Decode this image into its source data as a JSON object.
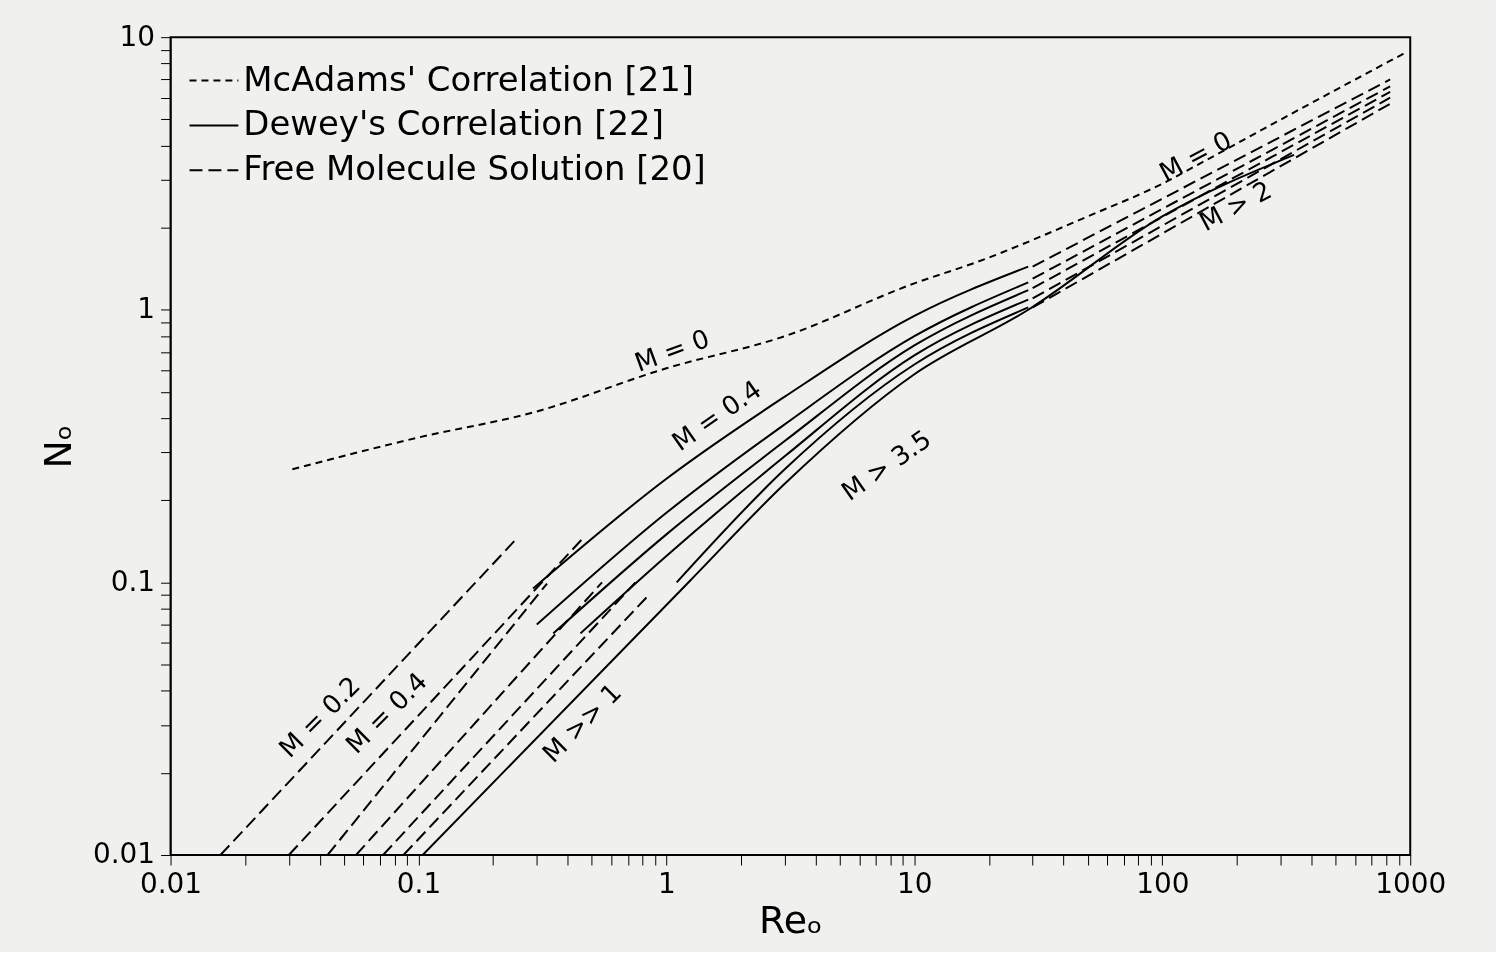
{
  "chart_data": {
    "type": "line",
    "xlabel": "Reₒ",
    "ylabel": "Nₒ",
    "log": "xy",
    "grid": false,
    "legend": "top left",
    "xlim": [
      0.01,
      1000
    ],
    "ylim": [
      0.01,
      10
    ],
    "xticks": [
      0.01,
      {
        "value": 0.02,
        "label": null
      },
      {
        "value": 0.03,
        "label": null
      },
      {
        "value": 0.04,
        "label": null
      },
      {
        "value": 0.05,
        "label": null
      },
      {
        "value": 0.06,
        "label": null
      },
      {
        "value": 0.07,
        "label": null
      },
      {
        "value": 0.08,
        "label": null
      },
      {
        "value": 0.09,
        "label": null
      },
      0.1,
      {
        "value": 0.2,
        "label": null
      },
      {
        "value": 0.3,
        "label": null
      },
      {
        "value": 0.4,
        "label": null
      },
      {
        "value": 0.5,
        "label": null
      },
      {
        "value": 0.6,
        "label": null
      },
      {
        "value": 0.7,
        "label": null
      },
      {
        "value": 0.8,
        "label": null
      },
      {
        "value": 0.9,
        "label": null
      },
      1,
      {
        "value": 2,
        "label": null
      },
      {
        "value": 3,
        "label": null
      },
      {
        "value": 4,
        "label": null
      },
      {
        "value": 5,
        "label": null
      },
      {
        "value": 6,
        "label": null
      },
      {
        "value": 7,
        "label": null
      },
      {
        "value": 8,
        "label": null
      },
      {
        "value": 9,
        "label": null
      },
      10,
      {
        "value": 20,
        "label": null
      },
      {
        "value": 30,
        "label": null
      },
      {
        "value": 40,
        "label": null
      },
      {
        "value": 50,
        "label": null
      },
      {
        "value": 60,
        "label": null
      },
      {
        "value": 70,
        "label": null
      },
      {
        "value": 80,
        "label": null
      },
      {
        "value": 90,
        "label": null
      },
      100,
      {
        "value": 200,
        "label": null
      },
      {
        "value": 300,
        "label": null
      },
      {
        "value": 400,
        "label": null
      },
      {
        "value": 500,
        "label": null
      },
      {
        "value": 600,
        "label": null
      },
      {
        "value": 700,
        "label": null
      },
      {
        "value": 800,
        "label": null
      },
      {
        "value": 900,
        "label": null
      },
      1000
    ],
    "yticks": [
      0.01,
      {
        "value": 0.02,
        "label": null
      },
      {
        "value": 0.03,
        "label": null
      },
      {
        "value": 0.04,
        "label": null
      },
      {
        "value": 0.05,
        "label": null
      },
      {
        "value": 0.06,
        "label": null
      },
      {
        "value": 0.07,
        "label": null
      },
      {
        "value": 0.08,
        "label": null
      },
      {
        "value": 0.09,
        "label": null
      },
      0.1,
      {
        "value": 0.2,
        "label": null
      },
      {
        "value": 0.3,
        "label": null
      },
      {
        "value": 0.4,
        "label": null
      },
      {
        "value": 0.5,
        "label": null
      },
      {
        "value": 0.6,
        "label": null
      },
      {
        "value": 0.7,
        "label": null
      },
      {
        "value": 0.8,
        "label": null
      },
      {
        "value": 0.9,
        "label": null
      },
      1,
      {
        "value": 2,
        "label": null
      },
      {
        "value": 3,
        "label": null
      },
      {
        "value": 4,
        "label": null
      },
      {
        "value": 5,
        "label": null
      },
      {
        "value": 6,
        "label": null
      },
      {
        "value": 7,
        "label": null
      },
      {
        "value": 8,
        "label": null
      },
      {
        "value": 9,
        "label": null
      },
      10
    ],
    "series": [
      {
        "name": "McAdams' Correlation [21]",
        "color": "#000000",
        "line_style": "dotted",
        "x": [
          0.031,
          0.1,
          0.29,
          1,
          3,
          10,
          18,
          50,
          100,
          147,
          340,
          940
        ],
        "values": [
          0.26,
          0.34,
          0.42,
          0.61,
          0.8,
          1.25,
          1.5,
          2.2,
          2.9,
          3.5,
          5.3,
          8.7
        ]
      },
      {
        "name": "Dewey's Correlation [22]",
        "color": "#000000",
        "line_style": "solid",
        "x": [
          0.29,
          1,
          3,
          10,
          28.8
        ],
        "values": [
          0.095,
          0.24,
          0.48,
          0.95,
          1.44
        ]
      },
      {
        "color": "#000000",
        "line_style": "solid",
        "x": [
          0.3,
          1,
          3,
          10,
          28.8
        ],
        "values": [
          0.07,
          0.18,
          0.38,
          0.8,
          1.26
        ]
      },
      {
        "color": "#000000",
        "line_style": "solid",
        "x": [
          0.35,
          1,
          3,
          10,
          28.8
        ],
        "values": [
          0.065,
          0.15,
          0.33,
          0.74,
          1.18
        ]
      },
      {
        "color": "#000000",
        "line_style": "solid",
        "x": [
          0.45,
          1,
          3,
          10,
          28.8
        ],
        "values": [
          0.065,
          0.125,
          0.29,
          0.68,
          1.09
        ]
      },
      {
        "color": "#000000",
        "line_style": "solid",
        "x": [
          1.1,
          3,
          10,
          28.8
        ],
        "values": [
          0.1,
          0.26,
          0.63,
          1.02
        ]
      },
      {
        "color": "#000000",
        "line_style": "solid",
        "x": [
          0.104,
          1.24,
          3,
          10,
          28.8,
          100,
          340
        ],
        "values": [
          0.01,
          0.101,
          0.23,
          0.58,
          1.0,
          2.2,
          3.7
        ]
      },
      {
        "name": "Free Molecule Solution [20]",
        "color": "#000000",
        "line_style": "dashed",
        "x": [
          0.0159,
          0.244
        ],
        "values": [
          0.01,
          0.142
        ]
      },
      {
        "color": "#000000",
        "line_style": "dashed",
        "x": [
          0.03,
          0.46
        ],
        "values": [
          0.01,
          0.145
        ]
      },
      {
        "color": "#000000",
        "line_style": "dashed",
        "x": [
          0.043,
          0.33
        ],
        "values": [
          0.01,
          0.099
        ]
      },
      {
        "color": "#000000",
        "line_style": "dashed",
        "x": [
          0.056,
          0.55
        ],
        "values": [
          0.01,
          0.1
        ]
      },
      {
        "color": "#000000",
        "line_style": "dashed",
        "x": [
          0.072,
          0.75
        ],
        "values": [
          0.01,
          0.1
        ]
      },
      {
        "color": "#000000",
        "line_style": "dashed",
        "x": [
          0.087,
          0.85
        ],
        "values": [
          0.01,
          0.09
        ]
      },
      {
        "color": "#000000",
        "line_style": "dashed",
        "x": [
          30,
          830
        ],
        "values": [
          1.44,
          7.0
        ]
      },
      {
        "color": "#000000",
        "line_style": "dashed",
        "x": [
          30,
          830
        ],
        "values": [
          1.3,
          6.6
        ]
      },
      {
        "color": "#000000",
        "line_style": "dashed",
        "x": [
          30,
          830
        ],
        "values": [
          1.2,
          6.3
        ]
      },
      {
        "color": "#000000",
        "line_style": "dashed",
        "x": [
          30,
          830
        ],
        "values": [
          1.1,
          6.0
        ]
      },
      {
        "color": "#000000",
        "line_style": "dashed",
        "x": [
          30,
          830
        ],
        "values": [
          1.02,
          5.7
        ]
      }
    ],
    "annotations": [
      "M = 0",
      "M = 0.4",
      "M > 3.5",
      "M = 0",
      "M > 2",
      "M = 0.2",
      "M = 0.4",
      "M >> 1"
    ]
  }
}
